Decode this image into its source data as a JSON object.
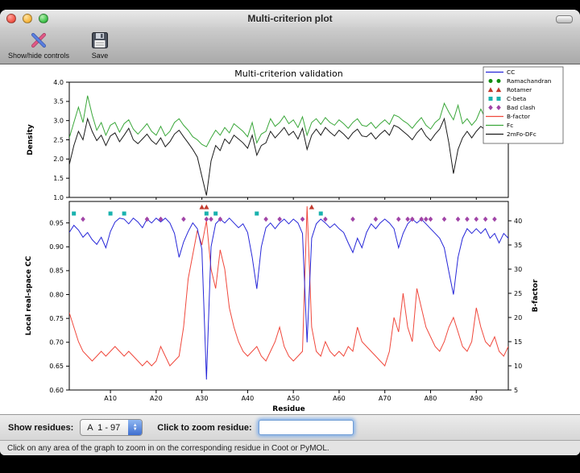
{
  "window": {
    "title": "Multi-criterion plot"
  },
  "toolbar": {
    "items": [
      {
        "label": "Show/hide controls",
        "icon": "tools-icon"
      },
      {
        "label": "Save",
        "icon": "save-icon"
      }
    ]
  },
  "legend": {
    "entries": [
      {
        "label": "CC",
        "shape": "line",
        "color": "#2626d8"
      },
      {
        "label": "Ramachandran",
        "shape": "circle",
        "color": "#0f8c0f"
      },
      {
        "label": "Rotamer",
        "shape": "triangle",
        "color": "#c23b2e"
      },
      {
        "label": "C-beta",
        "shape": "square",
        "color": "#19b2ae"
      },
      {
        "label": "Bad clash",
        "shape": "diamond",
        "color": "#a144a7"
      },
      {
        "label": "B-factor",
        "shape": "line",
        "color": "#f0483c"
      },
      {
        "label": "Fc",
        "shape": "line",
        "color": "#3aa73a"
      },
      {
        "label": "2mFo-DFc",
        "shape": "line",
        "color": "#1a1a1a"
      }
    ]
  },
  "chart_data": [
    {
      "type": "line",
      "title": "Multi-criterion validation",
      "ylabel": "Density",
      "ylim": [
        1.0,
        4.0
      ],
      "yticks": [
        1.0,
        1.5,
        2.0,
        2.5,
        3.0,
        3.5,
        4.0
      ],
      "ytick_labels": [
        "1.0",
        "1.5",
        "2.0",
        "2.5",
        "3.0",
        "3.5",
        "4.0"
      ],
      "x_range": [
        1,
        97
      ],
      "series": [
        {
          "name": "Fc",
          "color": "#3aa73a",
          "values": [
            2.55,
            2.95,
            3.35,
            2.95,
            3.65,
            3.15,
            2.75,
            2.95,
            2.62,
            2.88,
            2.95,
            2.7,
            2.92,
            3.02,
            2.78,
            2.65,
            2.78,
            2.92,
            2.72,
            2.62,
            2.85,
            2.6,
            2.72,
            2.95,
            3.05,
            2.88,
            2.75,
            2.58,
            2.5,
            2.38,
            2.32,
            2.55,
            2.75,
            2.62,
            2.82,
            2.68,
            2.92,
            2.82,
            2.72,
            2.58,
            2.95,
            2.42,
            2.65,
            2.72,
            3.05,
            2.85,
            2.95,
            3.12,
            2.92,
            3.02,
            2.82,
            3.1,
            2.62,
            2.95,
            3.05,
            2.9,
            3.08,
            2.95,
            2.88,
            3.02,
            2.92,
            2.8,
            2.95,
            3.05,
            2.88,
            2.85,
            2.95,
            2.8,
            2.92,
            3.02,
            2.9,
            3.15,
            3.1,
            3.0,
            2.92,
            2.8,
            2.95,
            3.08,
            2.88,
            2.78,
            2.95,
            3.05,
            3.45,
            3.22,
            3.02,
            3.4,
            2.92,
            3.05,
            2.88,
            3.02,
            3.3,
            3.05,
            3.18,
            3.0,
            2.88,
            3.1,
            3.05
          ]
        },
        {
          "name": "2mFo-DFc",
          "color": "#1a1a1a",
          "values": [
            1.85,
            2.35,
            2.72,
            2.5,
            3.05,
            2.72,
            2.48,
            2.62,
            2.35,
            2.6,
            2.68,
            2.45,
            2.62,
            2.8,
            2.5,
            2.4,
            2.52,
            2.65,
            2.48,
            2.38,
            2.55,
            2.32,
            2.45,
            2.65,
            2.75,
            2.58,
            2.42,
            2.25,
            2.05,
            1.55,
            1.05,
            1.95,
            2.35,
            2.22,
            2.52,
            2.4,
            2.62,
            2.52,
            2.42,
            2.28,
            2.62,
            2.1,
            2.35,
            2.42,
            2.72,
            2.55,
            2.68,
            2.82,
            2.62,
            2.72,
            2.52,
            2.8,
            2.25,
            2.62,
            2.78,
            2.62,
            2.82,
            2.7,
            2.6,
            2.75,
            2.65,
            2.52,
            2.68,
            2.78,
            2.6,
            2.58,
            2.68,
            2.52,
            2.65,
            2.75,
            2.62,
            2.88,
            2.82,
            2.72,
            2.62,
            2.5,
            2.68,
            2.8,
            2.6,
            2.48,
            2.65,
            2.78,
            3.05,
            2.42,
            1.62,
            2.25,
            2.55,
            2.72,
            2.55,
            2.72,
            2.85,
            2.75,
            2.88,
            2.7,
            2.55,
            2.78,
            2.72
          ]
        }
      ]
    },
    {
      "type": "line+markers",
      "xlabel": "Residue",
      "ylabel_left": "Local real-space CC",
      "ylabel_right": "B-factor",
      "ylim_left": [
        0.6,
        0.995
      ],
      "yticks_left": [
        0.6,
        0.65,
        0.7,
        0.75,
        0.8,
        0.85,
        0.9,
        0.95
      ],
      "ytick_labels_left": [
        "0.60",
        "0.65",
        "0.70",
        "0.75",
        "0.80",
        "0.85",
        "0.90",
        "0.95"
      ],
      "ylim_right": [
        5,
        44
      ],
      "yticks_right": [
        5,
        10,
        15,
        20,
        25,
        30,
        35,
        40
      ],
      "ytick_labels_right": [
        "5",
        "10",
        "15",
        "20",
        "25",
        "30",
        "35",
        "40"
      ],
      "x_range": [
        1,
        97
      ],
      "xticks": [
        10,
        20,
        30,
        40,
        50,
        60,
        70,
        80,
        90
      ],
      "xtick_labels": [
        "A10",
        "A20",
        "A30",
        "A40",
        "A50",
        "A60",
        "A70",
        "A80",
        "A90"
      ],
      "series": [
        {
          "name": "B-factor",
          "axis": "right",
          "color": "#f0483c",
          "values": [
            21,
            18,
            15,
            13,
            12,
            11,
            12,
            13,
            12,
            13,
            14,
            13,
            12,
            13,
            12,
            11,
            10,
            11,
            10,
            11,
            14,
            12,
            10,
            11,
            12,
            18,
            28,
            33,
            38,
            35,
            40,
            30,
            26,
            34,
            30,
            22,
            18,
            15,
            13,
            12,
            13,
            14,
            12,
            11,
            13,
            15,
            18,
            14,
            12,
            11,
            12,
            13,
            43,
            18,
            13,
            12,
            15,
            13,
            12,
            13,
            12,
            14,
            13,
            18,
            15,
            14,
            13,
            12,
            11,
            10,
            13,
            20,
            17,
            25,
            18,
            15,
            26,
            22,
            18,
            16,
            14,
            13,
            15,
            18,
            20,
            17,
            14,
            13,
            15,
            22,
            18,
            15,
            14,
            16,
            13,
            12,
            14
          ]
        },
        {
          "name": "CC",
          "axis": "left",
          "color": "#2626d8",
          "values": [
            0.93,
            0.945,
            0.935,
            0.92,
            0.93,
            0.915,
            0.905,
            0.92,
            0.898,
            0.932,
            0.952,
            0.96,
            0.958,
            0.948,
            0.96,
            0.952,
            0.94,
            0.958,
            0.95,
            0.96,
            0.952,
            0.96,
            0.95,
            0.928,
            0.878,
            0.91,
            0.932,
            0.95,
            0.938,
            0.895,
            0.622,
            0.9,
            0.948,
            0.958,
            0.95,
            0.96,
            0.95,
            0.94,
            0.948,
            0.93,
            0.878,
            0.812,
            0.9,
            0.94,
            0.95,
            0.938,
            0.95,
            0.958,
            0.948,
            0.958,
            0.95,
            0.928,
            0.7,
            0.918,
            0.948,
            0.958,
            0.95,
            0.94,
            0.948,
            0.938,
            0.93,
            0.908,
            0.888,
            0.918,
            0.898,
            0.93,
            0.948,
            0.938,
            0.95,
            0.958,
            0.95,
            0.938,
            0.898,
            0.928,
            0.948,
            0.958,
            0.95,
            0.958,
            0.948,
            0.938,
            0.928,
            0.918,
            0.898,
            0.848,
            0.8,
            0.878,
            0.918,
            0.938,
            0.928,
            0.938,
            0.928,
            0.938,
            0.918,
            0.928,
            0.908,
            0.928,
            0.918
          ]
        }
      ],
      "markers": [
        {
          "name": "Rotamer",
          "shape": "triangle",
          "color": "#c23b2e",
          "residues": [
            30,
            31,
            54
          ]
        },
        {
          "name": "C-beta",
          "shape": "square",
          "color": "#19b2ae",
          "residues": [
            2,
            10,
            13,
            31,
            33,
            42,
            56
          ]
        },
        {
          "name": "Bad clash",
          "shape": "diamond",
          "color": "#a144a7",
          "residues": [
            4,
            18,
            21,
            26,
            31,
            32,
            34,
            44,
            47,
            52,
            57,
            63,
            68,
            73,
            75,
            76,
            78,
            79,
            80,
            83,
            86,
            88,
            90,
            92,
            94
          ]
        }
      ]
    }
  ],
  "controls": {
    "show_residues_label": "Show residues:",
    "residue_range_value": "A  1 - 97",
    "zoom_label": "Click to zoom residue:",
    "zoom_input_value": ""
  },
  "status_bar": {
    "text": "Click on any area of the graph to zoom in on the corresponding residue in Coot or PyMOL."
  }
}
